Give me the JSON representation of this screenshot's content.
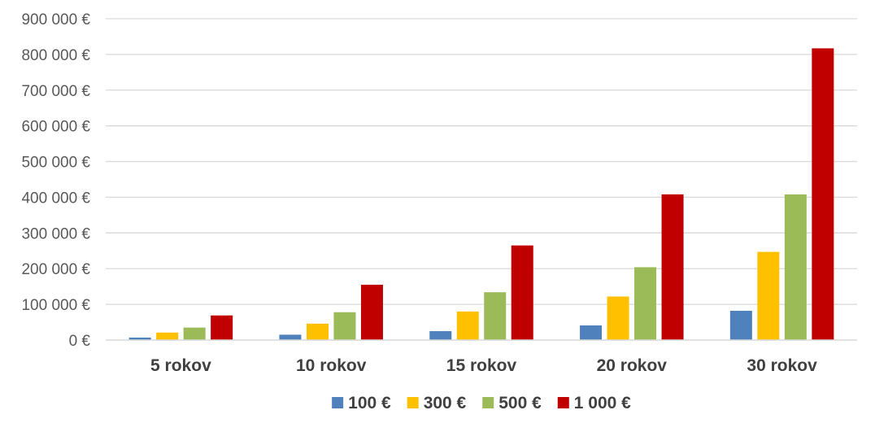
{
  "chart_data": {
    "type": "bar",
    "title": "",
    "xlabel": "",
    "ylabel": "",
    "categories": [
      "5 rokov",
      "10 rokov",
      "15 rokov",
      "20 rokov",
      "30 rokov"
    ],
    "series": [
      {
        "name": "100 €",
        "color": "#4f81bd",
        "values": [
          7000,
          15000,
          25000,
          41000,
          82000
        ]
      },
      {
        "name": "300 €",
        "color": "#ffc000",
        "values": [
          21000,
          46000,
          80000,
          122000,
          247000
        ]
      },
      {
        "name": "500 €",
        "color": "#9bbb59",
        "values": [
          35000,
          78000,
          134000,
          204000,
          408000
        ]
      },
      {
        "name": "1 000 €",
        "color": "#c00000",
        "values": [
          69000,
          155000,
          265000,
          408000,
          817000
        ]
      }
    ],
    "ylim": [
      0,
      900000
    ],
    "yticks": [
      0,
      100000,
      200000,
      300000,
      400000,
      500000,
      600000,
      700000,
      800000,
      900000
    ],
    "ytick_labels": [
      "0 €",
      "100 000 €",
      "200 000 €",
      "300 000 €",
      "400 000 €",
      "500 000 €",
      "600 000 €",
      "700 000 €",
      "800 000 €",
      "900 000 €"
    ],
    "grid": true,
    "legend_position": "bottom"
  }
}
